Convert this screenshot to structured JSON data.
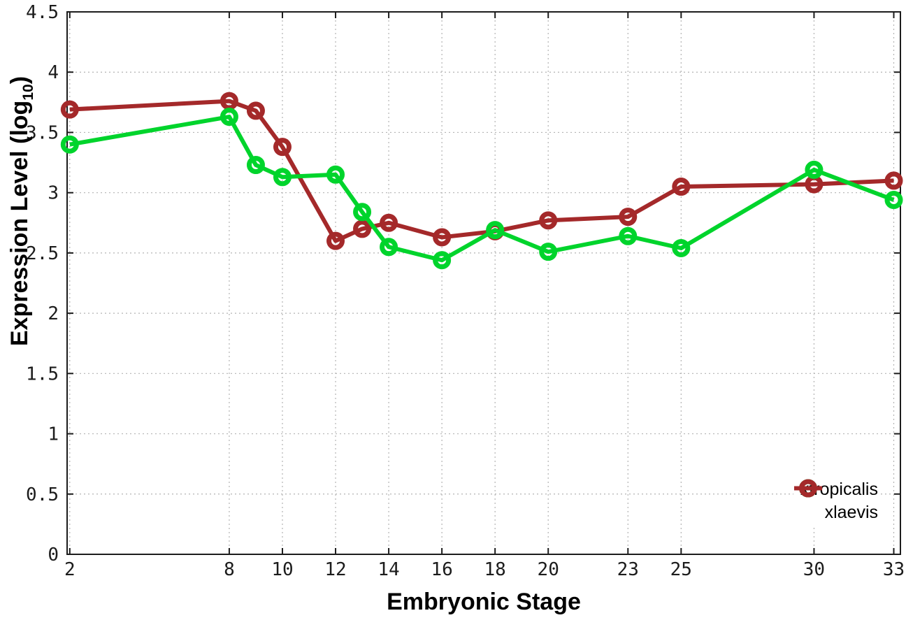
{
  "page": {
    "background": "#ffffff"
  },
  "chart_data": {
    "type": "line",
    "title": "",
    "xlabel": "Embryonic Stage",
    "ylabel": "Expression Level (log10)",
    "ylabel_parts": {
      "prefix": "Expression Level (log",
      "sub": "10",
      "suffix": ")"
    },
    "x": [
      2,
      8,
      9,
      10,
      12,
      13,
      14,
      16,
      18,
      20,
      23,
      25,
      30,
      33
    ],
    "x_tick_values": [
      2,
      8,
      10,
      12,
      14,
      16,
      18,
      20,
      23,
      25,
      30,
      33
    ],
    "x_tick_labels": [
      "2",
      "8",
      "10",
      "12",
      "14",
      "16",
      "18",
      "20",
      "23",
      "25",
      "30",
      "33"
    ],
    "y_tick_values": [
      0,
      0.5,
      1,
      1.5,
      2,
      2.5,
      3,
      3.5,
      4,
      4.5
    ],
    "y_tick_labels": [
      "0",
      "0.5",
      "1",
      "1.5",
      "2",
      "2.5",
      "3",
      "3.5",
      "4",
      "4.5"
    ],
    "xlim": [
      1.9,
      33.25
    ],
    "ylim": [
      0,
      4.5
    ],
    "grid": true,
    "legend_position": "bottom-right",
    "axis_color": "#1c1c1c",
    "grid_color": "#b3b3b3",
    "series": [
      {
        "name": "xtropicalis",
        "color": "#00d42c",
        "marker": "open-circle",
        "values": [
          3.4,
          3.63,
          3.23,
          3.13,
          3.15,
          2.84,
          2.55,
          2.44,
          2.69,
          2.51,
          2.64,
          2.54,
          3.19,
          2.94
        ]
      },
      {
        "name": "xlaevis",
        "color": "#a4292a",
        "marker": "open-circle",
        "values": [
          3.69,
          3.76,
          3.68,
          3.38,
          2.6,
          2.7,
          2.75,
          2.63,
          2.68,
          2.77,
          2.8,
          3.05,
          3.07,
          3.1
        ]
      }
    ]
  }
}
